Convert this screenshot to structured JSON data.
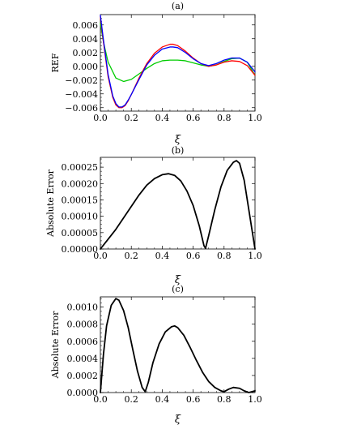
{
  "chart_data": [
    {
      "panel": "(a)",
      "type": "line",
      "title": "(a)",
      "xlabel": "ξ",
      "ylabel": "REF",
      "xlim": [
        0,
        1
      ],
      "ylim": [
        -0.0065,
        0.0075
      ],
      "xticks": [
        0.0,
        0.2,
        0.4,
        0.6,
        0.8,
        1.0
      ],
      "xtick_labels": [
        "0.0",
        "0.2",
        "0.4",
        "0.6",
        "0.8",
        "1.0"
      ],
      "yticks": [
        -0.006,
        -0.004,
        -0.002,
        0.0,
        0.002,
        0.004,
        0.006
      ],
      "ytick_labels": [
        "−0.006",
        "−0.004",
        "−0.002",
        "0.000",
        "0.002",
        "0.004",
        "0.006"
      ],
      "series": [
        {
          "color": "#00cc00",
          "x": [
            0.0,
            0.02,
            0.05,
            0.1,
            0.15,
            0.2,
            0.25,
            0.3,
            0.35,
            0.4,
            0.45,
            0.5,
            0.55,
            0.6,
            0.65,
            0.7,
            0.75,
            0.8,
            0.85,
            0.9,
            0.95,
            1.0
          ],
          "y": [
            0.0062,
            0.0035,
            0.0006,
            -0.0017,
            -0.0022,
            -0.0019,
            -0.0011,
            -0.0003,
            0.0004,
            0.0008,
            0.0009,
            0.0009,
            0.0008,
            0.0005,
            0.0002,
            0.0,
            0.0002,
            0.0007,
            0.0011,
            0.0012,
            0.0006,
            -0.0013
          ]
        },
        {
          "color": "#ff0000",
          "x": [
            0.0,
            0.02,
            0.05,
            0.08,
            0.1,
            0.12,
            0.14,
            0.16,
            0.18,
            0.2,
            0.25,
            0.3,
            0.35,
            0.4,
            0.45,
            0.47,
            0.5,
            0.55,
            0.6,
            0.65,
            0.7,
            0.75,
            0.8,
            0.85,
            0.9,
            0.95,
            1.0
          ],
          "y": [
            0.0072,
            0.0035,
            -0.0015,
            -0.0045,
            -0.0056,
            -0.006,
            -0.006,
            -0.0057,
            -0.005,
            -0.0041,
            -0.0017,
            0.0004,
            0.0019,
            0.0028,
            0.0032,
            0.0032,
            0.003,
            0.0022,
            0.0012,
            0.0004,
            0.0,
            0.0002,
            0.0006,
            0.0008,
            0.0007,
            0.0001,
            -0.0013
          ]
        },
        {
          "color": "#0000ff",
          "x": [
            0.0,
            0.02,
            0.05,
            0.08,
            0.1,
            0.12,
            0.14,
            0.16,
            0.18,
            0.2,
            0.25,
            0.3,
            0.35,
            0.4,
            0.45,
            0.47,
            0.5,
            0.55,
            0.6,
            0.65,
            0.7,
            0.75,
            0.8,
            0.85,
            0.9,
            0.95,
            1.0
          ],
          "y": [
            0.0074,
            0.0038,
            -0.0012,
            -0.0043,
            -0.0054,
            -0.0059,
            -0.0059,
            -0.0056,
            -0.0049,
            -0.0041,
            -0.0019,
            0.0002,
            0.0016,
            0.0025,
            0.0028,
            0.0028,
            0.0027,
            0.002,
            0.0011,
            0.0004,
            0.0001,
            0.0004,
            0.0009,
            0.0012,
            0.0012,
            0.0006,
            -0.0008
          ]
        }
      ]
    },
    {
      "panel": "(b)",
      "type": "line",
      "title": "(b)",
      "xlabel": "ξ",
      "ylabel": "Absolute Error",
      "xlim": [
        0,
        1
      ],
      "ylim": [
        0,
        0.00028
      ],
      "xticks": [
        0.0,
        0.2,
        0.4,
        0.6,
        0.8,
        1.0
      ],
      "xtick_labels": [
        "0.0",
        "0.2",
        "0.4",
        "0.6",
        "0.8",
        "1.0"
      ],
      "yticks": [
        0.0,
        5e-05,
        0.0001,
        0.00015,
        0.0002,
        0.00025
      ],
      "ytick_labels": [
        "0.00000",
        "0.00005",
        "0.00010",
        "0.00015",
        "0.00020",
        "0.00025"
      ],
      "series": [
        {
          "color": "#000000",
          "x": [
            0.0,
            0.05,
            0.1,
            0.15,
            0.2,
            0.25,
            0.3,
            0.35,
            0.4,
            0.44,
            0.48,
            0.52,
            0.56,
            0.6,
            0.64,
            0.67,
            0.68,
            0.7,
            0.74,
            0.78,
            0.82,
            0.86,
            0.88,
            0.9,
            0.93,
            0.96,
            1.0
          ],
          "y": [
            0.0,
            3e-05,
            6e-05,
            9.5e-05,
            0.00013,
            0.000165,
            0.000195,
            0.000215,
            0.000227,
            0.00023,
            0.000225,
            0.000208,
            0.000177,
            0.000133,
            7e-05,
            1e-05,
            2e-06,
            4e-05,
            0.00012,
            0.00019,
            0.00024,
            0.000265,
            0.00027,
            0.000262,
            0.00021,
            0.00012,
            0.0
          ]
        }
      ]
    },
    {
      "panel": "(c)",
      "type": "line",
      "title": "(c)",
      "xlabel": "ξ",
      "ylabel": "Absolute Error",
      "xlim": [
        0,
        1
      ],
      "ylim": [
        0,
        0.00112
      ],
      "xticks": [
        0.0,
        0.2,
        0.4,
        0.6,
        0.8,
        1.0
      ],
      "xtick_labels": [
        "0.0",
        "0.2",
        "0.4",
        "0.6",
        "0.8",
        "1.0"
      ],
      "yticks": [
        0.0,
        0.0002,
        0.0004,
        0.0006,
        0.0008,
        0.001
      ],
      "ytick_labels": [
        "0.0000",
        "0.0002",
        "0.0004",
        "0.0006",
        "0.0008",
        "0.0010"
      ],
      "series": [
        {
          "color": "#000000",
          "x": [
            0.0,
            0.02,
            0.04,
            0.07,
            0.1,
            0.12,
            0.15,
            0.18,
            0.21,
            0.24,
            0.27,
            0.29,
            0.31,
            0.34,
            0.38,
            0.42,
            0.46,
            0.48,
            0.5,
            0.54,
            0.58,
            0.62,
            0.66,
            0.7,
            0.74,
            0.78,
            0.8,
            0.83,
            0.86,
            0.9,
            0.93,
            0.96,
            1.0
          ],
          "y": [
            0.0,
            0.00045,
            0.00078,
            0.00102,
            0.0011,
            0.00108,
            0.00096,
            0.00076,
            0.0005,
            0.00025,
            6e-05,
            1e-05,
            0.00012,
            0.00035,
            0.00057,
            0.00071,
            0.00077,
            0.00078,
            0.00076,
            0.00067,
            0.00053,
            0.00038,
            0.00024,
            0.00013,
            6e-05,
            2e-05,
            1e-05,
            4e-05,
            6e-05,
            5e-05,
            2e-05,
            0.0,
            2e-05
          ]
        }
      ]
    }
  ]
}
